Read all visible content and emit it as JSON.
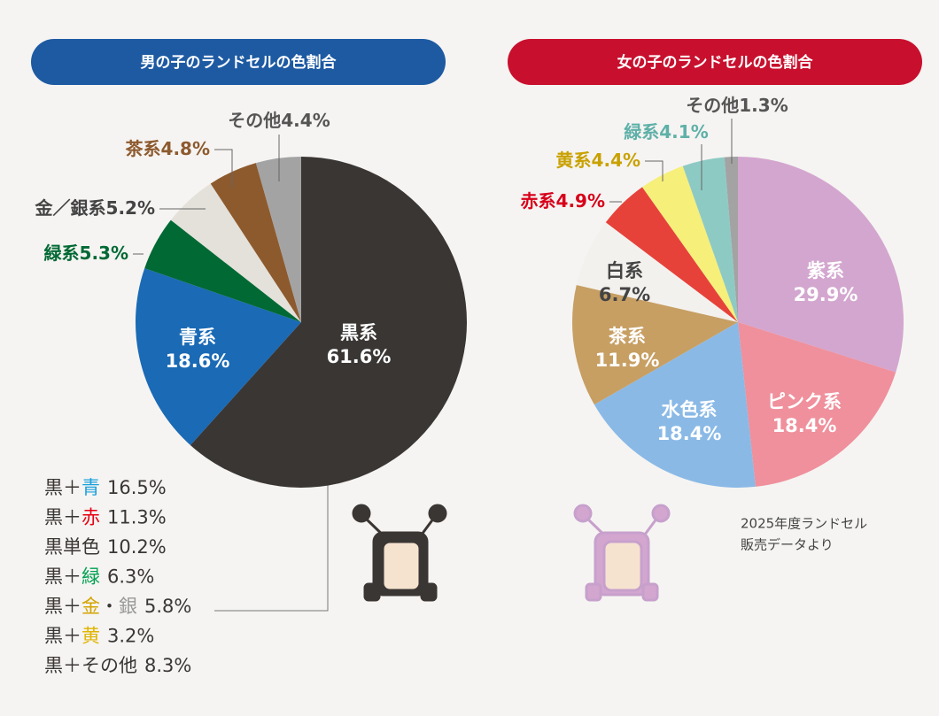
{
  "chart_data": [
    {
      "type": "pie",
      "title": "男の子のランドセルの色割合",
      "title_color": "#1d5aa2",
      "categories": [
        "黒系",
        "青系",
        "緑系",
        "金／銀系",
        "茶系",
        "その他"
      ],
      "values": [
        61.6,
        18.6,
        5.3,
        5.2,
        4.8,
        4.4
      ],
      "value_labels": [
        "61.6%",
        "18.6%",
        "5.3%",
        "5.2%",
        "4.8%",
        "4.4%"
      ],
      "colors": [
        "#3a3634",
        "#1a6ab5",
        "#006934",
        "#e4e1da",
        "#8d5a2e",
        "#a3a3a3"
      ],
      "label_colors": [
        "#ffffff",
        "#ffffff",
        "#006934",
        "#444444",
        "#8d5a2e",
        "#555555"
      ]
    },
    {
      "type": "pie",
      "title": "女の子のランドセルの色割合",
      "title_color": "#c8102e",
      "categories": [
        "紫系",
        "ピンク系",
        "水色系",
        "茶系",
        "白系",
        "赤系",
        "黄系",
        "緑系",
        "その他"
      ],
      "values": [
        29.9,
        18.4,
        18.4,
        11.9,
        6.7,
        4.9,
        4.4,
        4.1,
        1.3
      ],
      "value_labels": [
        "29.9%",
        "18.4%",
        "18.4%",
        "11.9%",
        "6.7%",
        "4.9%",
        "4.4%",
        "4.1%",
        "1.3%"
      ],
      "colors": [
        "#d3a6cf",
        "#ef909c",
        "#8ab9e6",
        "#c79f63",
        "#f3f1ee",
        "#e6423a",
        "#f6ef7a",
        "#8ecac4",
        "#a3a3a3"
      ],
      "label_colors": [
        "#ffffff",
        "#ffffff",
        "#ffffff",
        "#ffffff",
        "#444444",
        "#d7001a",
        "#c9a100",
        "#5fb0a8",
        "#555555"
      ]
    }
  ],
  "breakdown": [
    {
      "parts": [
        {
          "text": "黒＋"
        },
        {
          "text": "青",
          "color": "#1aa0dc"
        }
      ],
      "value": "16.5%"
    },
    {
      "parts": [
        {
          "text": "黒＋"
        },
        {
          "text": "赤",
          "color": "#e60012"
        }
      ],
      "value": "11.3%"
    },
    {
      "parts": [
        {
          "text": "黒単色"
        }
      ],
      "value": "10.2%"
    },
    {
      "parts": [
        {
          "text": "黒＋"
        },
        {
          "text": "緑",
          "color": "#00a050"
        }
      ],
      "value": "6.3%"
    },
    {
      "parts": [
        {
          "text": "黒＋"
        },
        {
          "text": "金",
          "color": "#d4a400"
        },
        {
          "text": "・"
        },
        {
          "text": "銀",
          "color": "#999999"
        }
      ],
      "value": "5.8%"
    },
    {
      "parts": [
        {
          "text": "黒＋"
        },
        {
          "text": "黄",
          "color": "#e0b400"
        }
      ],
      "value": "3.2%"
    },
    {
      "parts": [
        {
          "text": "黒＋その他"
        }
      ],
      "value": "8.3%"
    }
  ],
  "note": [
    "2025年度ランドセル",
    "販売データより"
  ]
}
